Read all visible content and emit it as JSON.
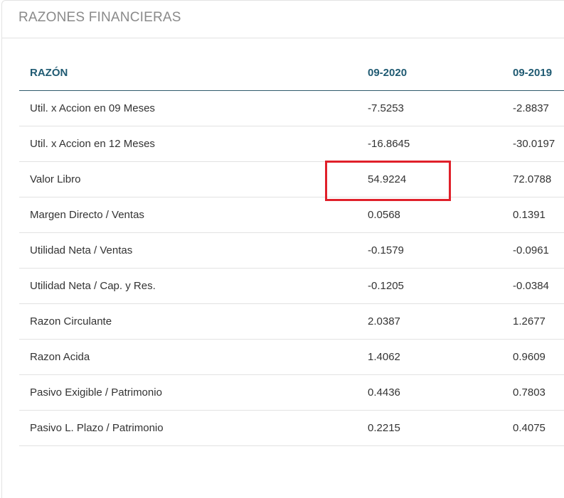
{
  "title": "RAZONES FINANCIERAS",
  "highlight_color": "#e0202a",
  "columns": [
    "RAZÓN",
    "09-2020",
    "09-2019"
  ],
  "rows": [
    [
      "Util. x Accion en 09 Meses",
      "-7.5253",
      "-2.8837"
    ],
    [
      "Util. x Accion en 12 Meses",
      "-16.8645",
      "-30.0197"
    ],
    [
      "Valor Libro",
      "54.9224",
      "72.0788"
    ],
    [
      "Margen Directo / Ventas",
      "0.0568",
      "0.1391"
    ],
    [
      "Utilidad Neta / Ventas",
      "-0.1579",
      "-0.0961"
    ],
    [
      "Utilidad Neta / Cap. y Res.",
      "-0.1205",
      "-0.0384"
    ],
    [
      "Razon Circulante",
      "2.0387",
      "1.2677"
    ],
    [
      "Razon Acida",
      "1.4062",
      "0.9609"
    ],
    [
      "Pasivo Exigible / Patrimonio",
      "0.4436",
      "0.7803"
    ],
    [
      "Pasivo L. Plazo / Patrimonio",
      "0.2215",
      "0.4075"
    ]
  ]
}
